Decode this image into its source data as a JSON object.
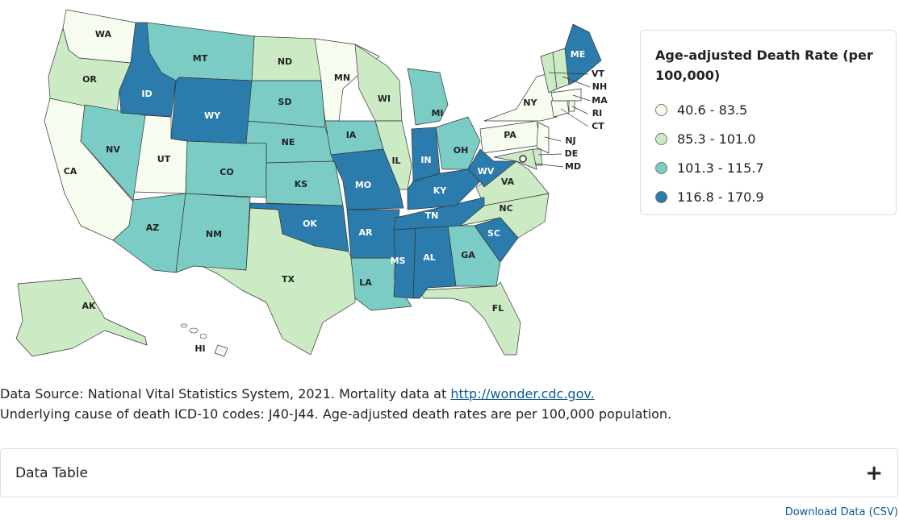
{
  "legend": {
    "title": "Age-adjusted Death Rate (per 100,000)",
    "items": [
      {
        "label": "40.6 - 83.5",
        "color": "#f7fcf0",
        "states": [
          "WA",
          "CA",
          "UT",
          "MN",
          "NY",
          "PA",
          "NJ",
          "CT",
          "MA",
          "RI",
          "HI"
        ]
      },
      {
        "label": "85.3 - 101.0",
        "color": "#ccebc5",
        "states": [
          "OR",
          "ND",
          "WI",
          "IL",
          "TX",
          "NC",
          "VA",
          "FL",
          "VT",
          "NH",
          "DE",
          "MD",
          "AK"
        ]
      },
      {
        "label": "101.3 - 115.7",
        "color": "#7bccc4",
        "states": [
          "NV",
          "MT",
          "SD",
          "NE",
          "CO",
          "KS",
          "AZ",
          "NM",
          "IA",
          "MI",
          "OH",
          "GA",
          "LA"
        ]
      },
      {
        "label": "116.8 - 170.9",
        "color": "#2b7cac",
        "states": [
          "ID",
          "WY",
          "MO",
          "OK",
          "AR",
          "MS",
          "AL",
          "TN",
          "KY",
          "IN",
          "WV",
          "SC",
          "ME"
        ]
      }
    ]
  },
  "source": {
    "text": "Data Source: National Vital Statistics System, 2021. Mortality data at",
    "link": "http://wonder.cdc.gov."
  },
  "note": "Underlying cause of death ICD-10 codes: J40-J44. Age-adjusted death rates are per 100,000 population.",
  "data_table": {
    "label": "Data Table",
    "toggle": "+"
  },
  "download": "Download Data (CSV)"
}
